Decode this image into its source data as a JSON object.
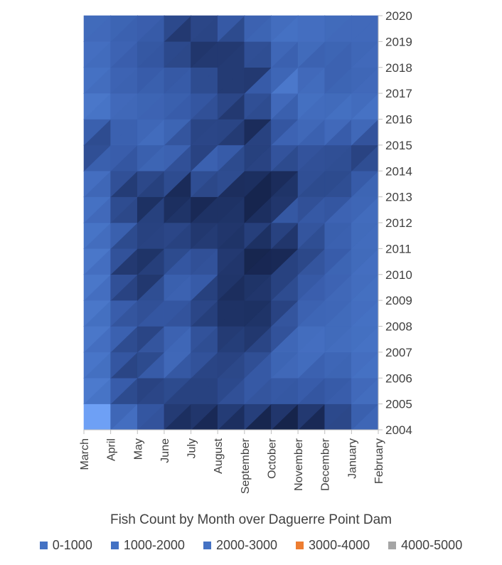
{
  "chart_data": {
    "type": "heatmap",
    "title": "Fish Count by Month over Daguerre Point Dam",
    "x_categories": [
      "March",
      "April",
      "May",
      "June",
      "July",
      "August",
      "September",
      "October",
      "November",
      "December",
      "January",
      "February"
    ],
    "y_categories": [
      "2004",
      "2005",
      "2006",
      "2007",
      "2008",
      "2009",
      "2010",
      "2011",
      "2012",
      "2013",
      "2014",
      "2015",
      "2016",
      "2017",
      "2018",
      "2019",
      "2020"
    ],
    "legend": [
      {
        "label": "0-1000",
        "color": "#4472C4"
      },
      {
        "label": "1000-2000",
        "color": "#4472C4"
      },
      {
        "label": "2000-3000",
        "color": "#4472C4"
      },
      {
        "label": "3000-4000",
        "color": "#ED7D31"
      },
      {
        "label": "4000-5000",
        "color": "#A5A5A5"
      }
    ],
    "values": [
      [
        0,
        10,
        100,
        2200,
        2700,
        2700,
        2600,
        3400,
        3300,
        2300,
        1600,
        600
      ],
      [
        200,
        700,
        2000,
        1900,
        1800,
        1700,
        1400,
        1600,
        1200,
        1500,
        1100,
        600
      ],
      [
        300,
        800,
        2100,
        1200,
        1700,
        1900,
        1300,
        1100,
        1100,
        1300,
        900,
        500
      ],
      [
        400,
        900,
        2300,
        400,
        1000,
        1600,
        1800,
        1400,
        400,
        800,
        700,
        500
      ],
      [
        300,
        800,
        1500,
        1400,
        1300,
        2000,
        2300,
        2000,
        900,
        900,
        700,
        600
      ],
      [
        300,
        900,
        1800,
        1100,
        1500,
        2300,
        2200,
        2100,
        1200,
        1000,
        800,
        600
      ],
      [
        300,
        900,
        2600,
        1700,
        500,
        1700,
        2300,
        1900,
        1400,
        1200,
        800,
        600
      ],
      [
        300,
        900,
        2500,
        1300,
        1800,
        2100,
        2200,
        3100,
        2100,
        1500,
        900,
        700
      ],
      [
        400,
        1000,
        1400,
        1500,
        2300,
        2000,
        2100,
        1300,
        1000,
        1000,
        800,
        700
      ],
      [
        400,
        1100,
        2600,
        2600,
        2600,
        2200,
        2300,
        3300,
        1600,
        1800,
        1200,
        800
      ],
      [
        500,
        1200,
        2100,
        300,
        1800,
        200,
        2300,
        2100,
        1500,
        1400,
        1600,
        900
      ],
      [
        2400,
        1600,
        700,
        500,
        2300,
        1200,
        2300,
        900,
        1200,
        1500,
        1600,
        2100
      ],
      [
        200,
        700,
        900,
        1100,
        1300,
        1600,
        2400,
        2200,
        900,
        500,
        500,
        500
      ],
      [
        500,
        800,
        1000,
        1000,
        1200,
        1500,
        2000,
        100,
        200,
        900,
        1000,
        800
      ],
      [
        500,
        900,
        1300,
        1300,
        1500,
        2000,
        2400,
        1600,
        1100,
        1200,
        1000,
        700
      ],
      [
        700,
        900,
        1200,
        1400,
        2200,
        2500,
        1500,
        600,
        500,
        800,
        900,
        800
      ],
      [
        800,
        900,
        1100,
        1100,
        2400,
        500,
        800,
        800,
        800,
        800,
        800,
        800
      ]
    ],
    "colors": {
      "band_0_1000": "#4472C4",
      "band_1000_2000": "#4472C4",
      "band_2000_3000": "#4472C4",
      "band_3000_4000": "#ED7D31",
      "axis": "#BFBFBF"
    }
  }
}
